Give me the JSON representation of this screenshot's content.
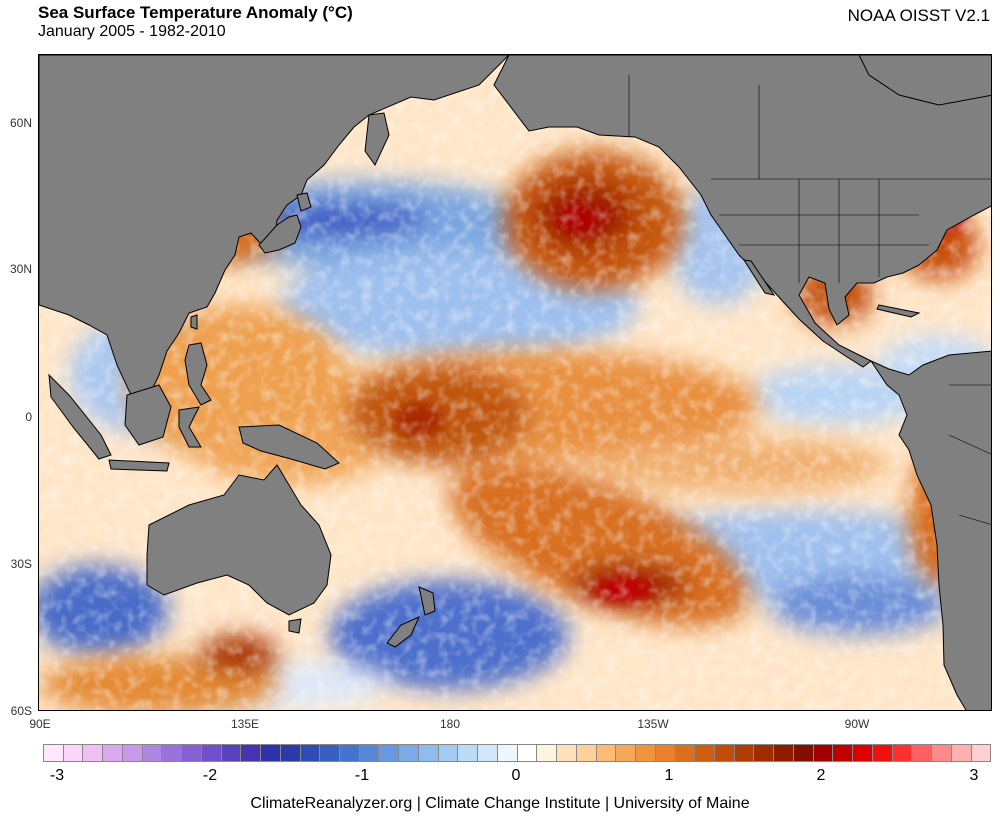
{
  "header": {
    "title": "Sea Surface Temperature Anomaly (°C)",
    "subtitle": "January 2005 - 1982-2010",
    "dataset": "NOAA OISST V2.1"
  },
  "map": {
    "lat_labels": [
      "60N",
      "30N",
      "0",
      "30S",
      "60S"
    ],
    "lon_labels": [
      "90E",
      "135E",
      "180",
      "135W",
      "90W"
    ],
    "land_color": "#808080",
    "ocean_base_color": "#ffe6c8"
  },
  "colorbar": {
    "colors": [
      "#ffe8ff",
      "#fcd5fc",
      "#f0c0f5",
      "#dca8f0",
      "#c898ec",
      "#b085e4",
      "#9a72dc",
      "#8460d2",
      "#6e50c8",
      "#5a42bc",
      "#4434b0",
      "#3030a8",
      "#2a3aa8",
      "#2e4cb4",
      "#3860c0",
      "#4674cc",
      "#5686d6",
      "#6898e0",
      "#7aaae8",
      "#8ebcee",
      "#a4ccf2",
      "#badcf6",
      "#d2e8fa",
      "#eef6fe",
      "#ffffff",
      "#fff4e0",
      "#ffe2bc",
      "#ffd09a",
      "#fcbc78",
      "#f6a85a",
      "#f09440",
      "#e8802c",
      "#dc6e1c",
      "#d05c10",
      "#c04c08",
      "#b03c04",
      "#a02c00",
      "#901c00",
      "#801000",
      "#a00000",
      "#c00000",
      "#dc0000",
      "#f01010",
      "#ff3030",
      "#ff6060",
      "#ff8a8a",
      "#ffb0b0",
      "#ffd0d0"
    ],
    "labels": [
      "-3",
      "-2",
      "-1",
      "0",
      "1",
      "2",
      "3"
    ]
  },
  "footer": {
    "credits": "ClimateReanalyzer.org | Climate Change Institute | University of Maine"
  }
}
